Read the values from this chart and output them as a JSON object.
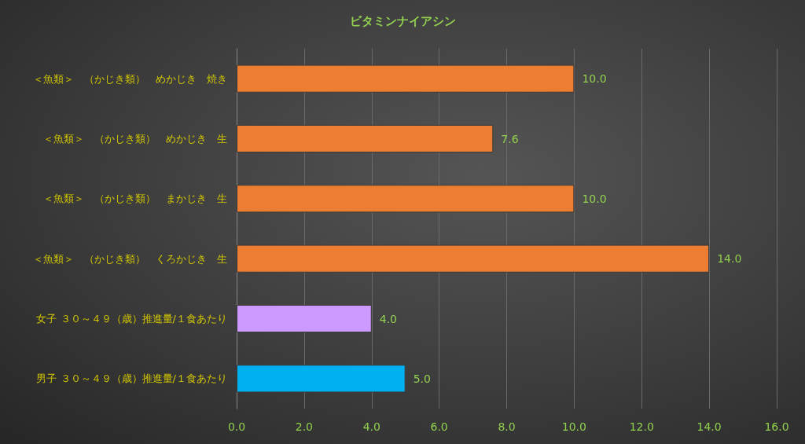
{
  "chart_data": {
    "type": "bar",
    "orientation": "horizontal",
    "title": "ビタミンナイアシン",
    "categories": [
      "＜魚類＞　（かじき類）　めかじき　焼き",
      "＜魚類＞　（かじき類）　めかじき　生",
      "＜魚類＞　（かじき類）　まかじき　生",
      "＜魚類＞　（かじき類）　くろかじき　生",
      "女子 ３０～４９（歳）推進量/１食あたり",
      "男子 ３０～４９（歳）推進量/１食あたり"
    ],
    "values": [
      10,
      7.6,
      10,
      14,
      4,
      5
    ],
    "colors": [
      "#ed7d31",
      "#ed7d31",
      "#ed7d31",
      "#ed7d31",
      "#cc99ff",
      "#00b0f0"
    ],
    "value_labels": [
      "10.0",
      "7.6",
      "10.0",
      "14.0",
      "4.0",
      "5.0"
    ],
    "xlim": [
      0,
      16
    ],
    "xticks": [
      {
        "value": 0,
        "label": "0.0"
      },
      {
        "value": 2,
        "label": "2.0"
      },
      {
        "value": 4,
        "label": "4.0"
      },
      {
        "value": 6,
        "label": "6.0"
      },
      {
        "value": 8,
        "label": "8.0"
      },
      {
        "value": 10,
        "label": "10.0"
      },
      {
        "value": 12,
        "label": "12.0"
      },
      {
        "value": 14,
        "label": "14.0"
      },
      {
        "value": 16,
        "label": "16.0"
      }
    ],
    "grid": "x"
  }
}
